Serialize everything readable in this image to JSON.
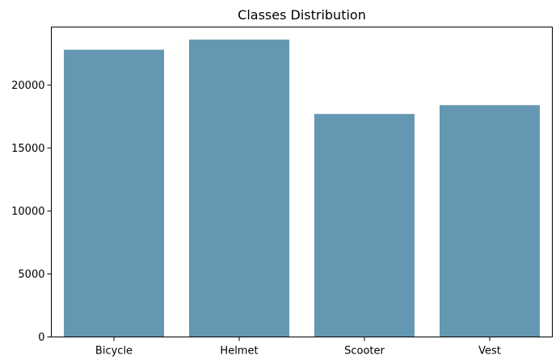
{
  "chart_data": {
    "type": "bar",
    "title": "Classes Distribution",
    "xlabel": "",
    "ylabel": "",
    "categories": [
      "Bicycle",
      "Helmet",
      "Scooter",
      "Vest"
    ],
    "values": [
      22800,
      23600,
      17700,
      18400
    ],
    "ylim": [
      0,
      24600
    ],
    "yticks": [
      0,
      5000,
      10000,
      15000,
      20000
    ],
    "grid": false,
    "legend": "none",
    "bar_color": "#6497b1"
  }
}
